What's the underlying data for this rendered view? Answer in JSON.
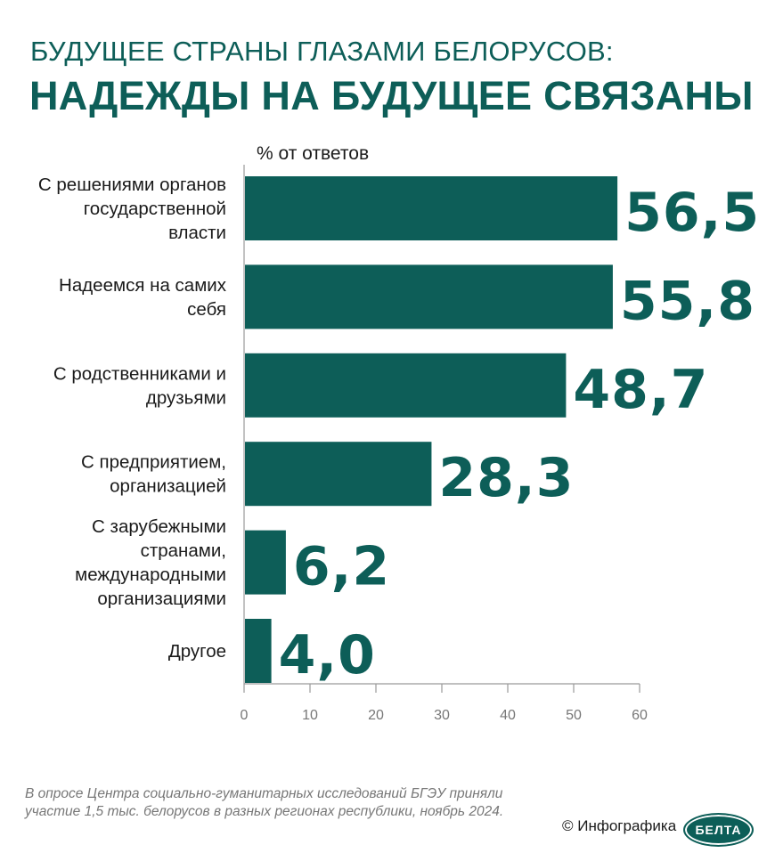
{
  "header": {
    "title_line1": "БУДУЩЕЕ СТРАНЫ ГЛАЗАМИ БЕЛОРУСОВ:",
    "title_line2": "НАДЕЖДЫ НА БУДУЩЕЕ СВЯЗАНЫ"
  },
  "chart_data": {
    "type": "bar",
    "orientation": "horizontal",
    "units_label": "% от ответов",
    "categories": [
      [
        "С решениями органов",
        "государственной",
        "власти"
      ],
      [
        "Надеемся на самих",
        "себя"
      ],
      [
        "С родственниками и",
        "друзьями"
      ],
      [
        "С предприятием,",
        "организацией"
      ],
      [
        "С зарубежными",
        "странами,",
        "международными",
        "организациями"
      ],
      [
        "Другое"
      ]
    ],
    "values": [
      56.5,
      55.8,
      48.7,
      28.3,
      6.2,
      4.0
    ],
    "value_labels": [
      "56,5",
      "55,8",
      "48,7",
      "28,3",
      "6,2",
      "4,0"
    ],
    "xlim": [
      0,
      60
    ],
    "x_ticks": [
      "0",
      "10",
      "20",
      "30",
      "40",
      "50",
      "60"
    ],
    "grid": false,
    "bar_color": "#0d5e58"
  },
  "footer": {
    "note": "В опросе Центра социально-гуманитарных исследований БГЭУ приняли участие 1,5 тыс. белорусов в разных регионах республики, ноябрь 2024.",
    "credit": "© Инфографика",
    "logo_text": "БЕЛТА"
  }
}
